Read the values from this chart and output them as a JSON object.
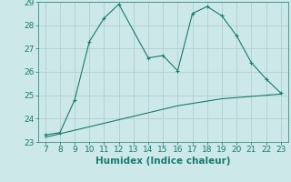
{
  "xlabel": "Humidex (Indice chaleur)",
  "x_ticks": [
    7,
    8,
    9,
    10,
    11,
    12,
    13,
    14,
    15,
    16,
    17,
    18,
    19,
    20,
    21,
    22,
    23
  ],
  "xlim": [
    6.5,
    23.5
  ],
  "ylim": [
    23,
    29
  ],
  "y_ticks": [
    23,
    24,
    25,
    26,
    27,
    28,
    29
  ],
  "line1_x": [
    7,
    8,
    9,
    10,
    11,
    12,
    14,
    15,
    16,
    17,
    18,
    19,
    20,
    21,
    22,
    23
  ],
  "line1_y": [
    23.3,
    23.4,
    24.8,
    27.3,
    28.3,
    28.9,
    26.6,
    26.7,
    26.05,
    28.5,
    28.8,
    28.4,
    27.55,
    26.4,
    25.7,
    25.1
  ],
  "line2_x": [
    7,
    8,
    9,
    10,
    11,
    12,
    13,
    14,
    15,
    16,
    17,
    18,
    19,
    20,
    21,
    22,
    23
  ],
  "line2_y": [
    23.2,
    23.35,
    23.5,
    23.65,
    23.8,
    23.95,
    24.1,
    24.25,
    24.4,
    24.55,
    24.65,
    24.75,
    24.85,
    24.9,
    24.95,
    25.0,
    25.05
  ],
  "line_color": "#1a7a6e",
  "bg_color": "#cce8e8",
  "grid_color": "#b0cfcf",
  "tick_label_fontsize": 6.5,
  "xlabel_fontsize": 7.5
}
